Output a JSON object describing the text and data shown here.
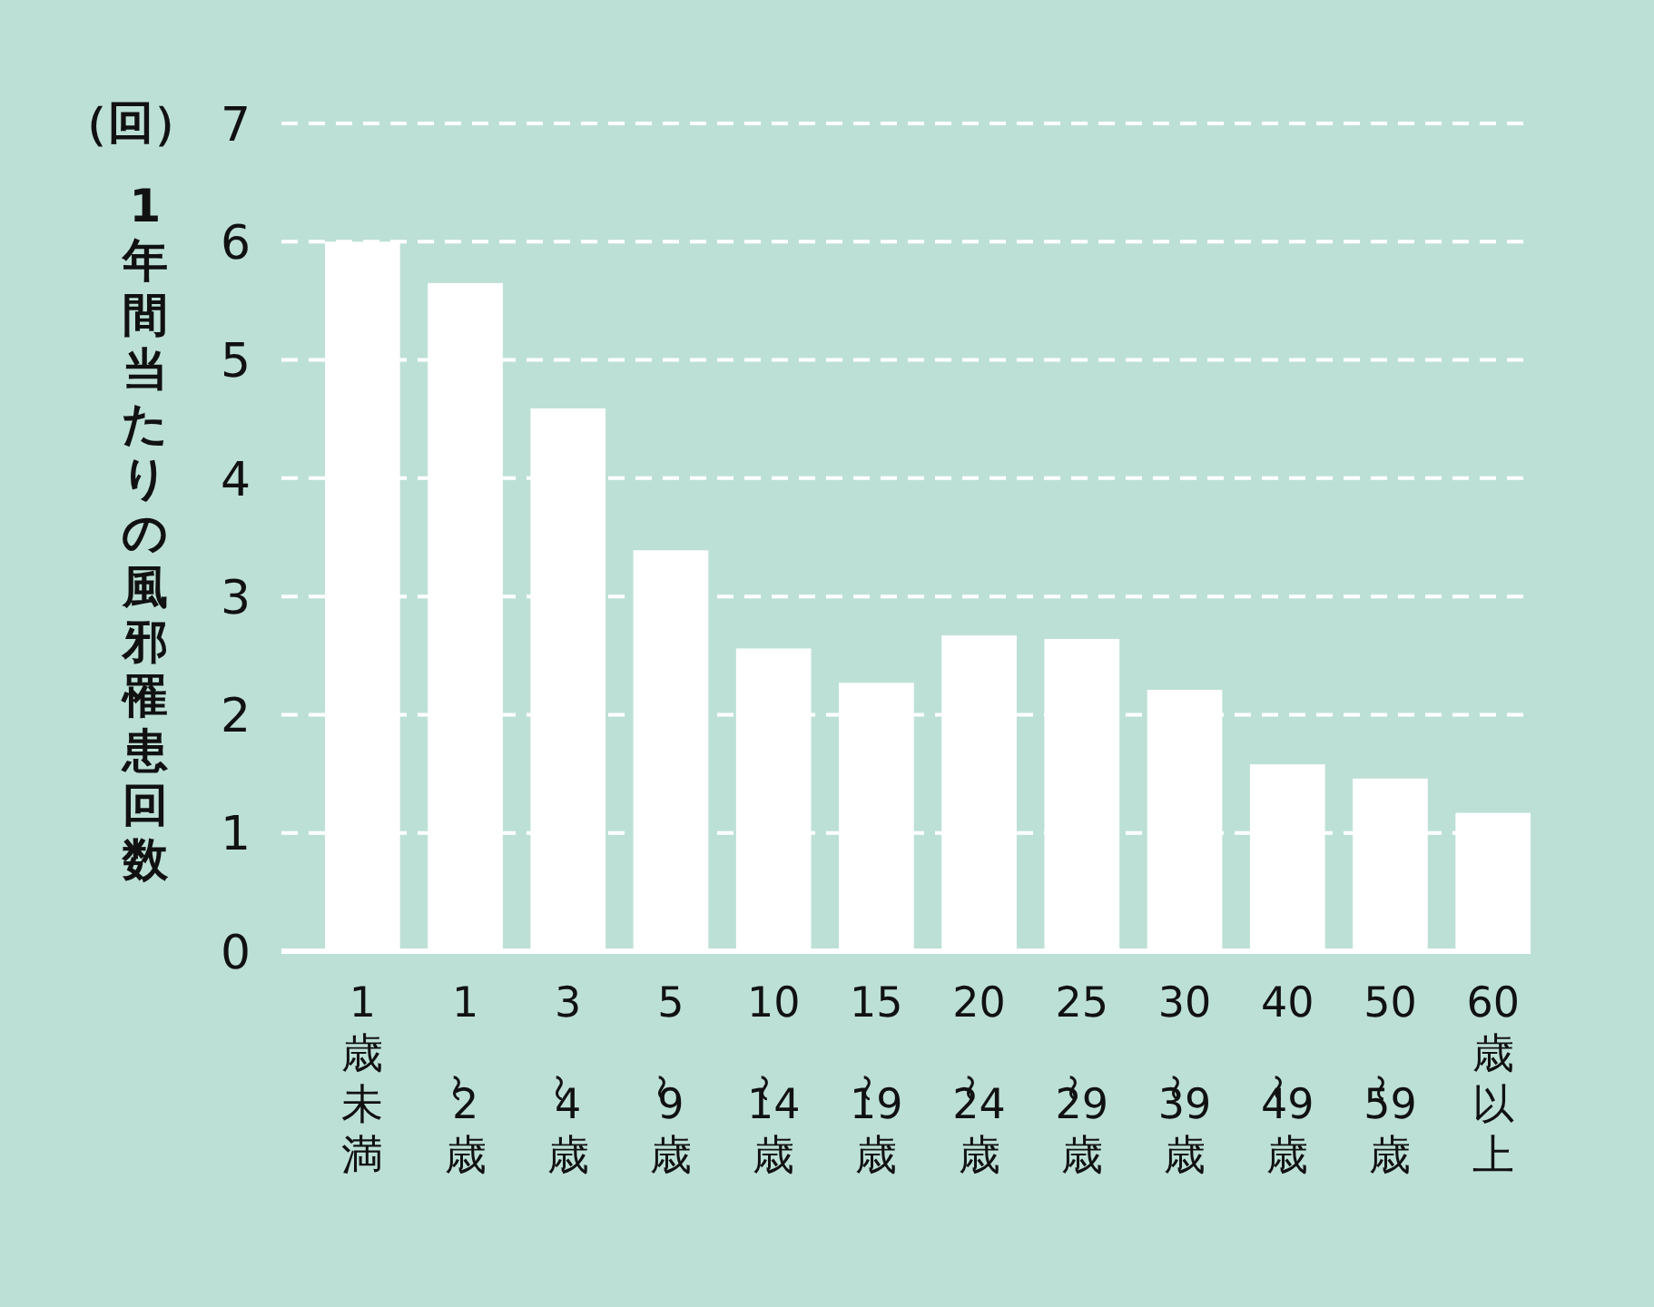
{
  "chart_data": {
    "type": "bar",
    "ylabel": "1年間当たりの風邪罹患回数",
    "annotations": [
      "（回）"
    ],
    "categories": [
      "1歳未満",
      "1～2歳",
      "3～4歳",
      "5～9歳",
      "10～14歳",
      "15～19歳",
      "20～24歳",
      "25～29歳",
      "30～39歳",
      "40～49歳",
      "50～59歳",
      "60歳以上"
    ],
    "values": [
      6.0,
      5.65,
      4.59,
      3.39,
      2.56,
      2.27,
      2.67,
      2.64,
      2.21,
      1.58,
      1.46,
      1.17
    ],
    "color": "#ffffff",
    "ylim": [
      0,
      7
    ],
    "yticks": [
      0,
      1,
      2,
      3,
      4,
      5,
      6,
      7
    ],
    "grid": "y",
    "line_style": "dashed"
  }
}
